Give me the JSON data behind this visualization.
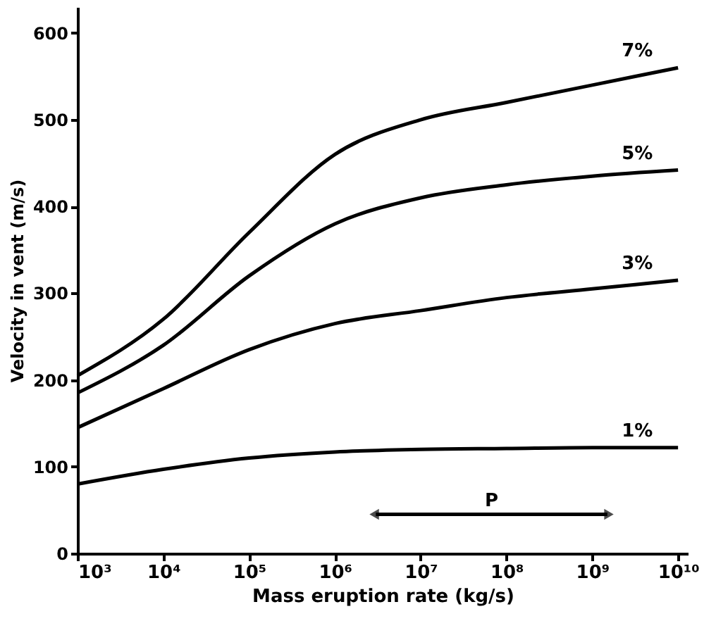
{
  "chart_data": {
    "type": "line",
    "xlabel": "Mass eruption rate  (kg/s)",
    "ylabel": "Velocity in vent (m/s)",
    "log": "x",
    "grid": false,
    "marker": "none",
    "line_style": "solid",
    "xlim": [
      1000,
      13000000000
    ],
    "ylim": [
      0,
      630
    ],
    "xticks": [
      {
        "value": 1000,
        "label": "10³"
      },
      {
        "value": 10000,
        "label": "10⁴"
      },
      {
        "value": 100000,
        "label": "10⁵"
      },
      {
        "value": 1000000,
        "label": "10⁶"
      },
      {
        "value": 10000000,
        "label": "10⁷"
      },
      {
        "value": 100000000,
        "label": "10⁸"
      },
      {
        "value": 1000000000,
        "label": "10⁹"
      },
      {
        "value": 10000000000,
        "label": "10¹⁰"
      }
    ],
    "yticks": [
      0,
      100,
      200,
      300,
      400,
      500,
      600
    ],
    "x": [
      1000,
      10000,
      100000,
      1000000,
      10000000,
      100000000,
      1000000000,
      10000000000
    ],
    "series": [
      {
        "name": "7%",
        "color": "#000000",
        "values": [
          205,
          270,
          370,
          460,
          500,
          520,
          540,
          560
        ]
      },
      {
        "name": "5%",
        "color": "#000000",
        "values": [
          185,
          240,
          320,
          380,
          410,
          425,
          435,
          442
        ]
      },
      {
        "name": "3%",
        "color": "#000000",
        "values": [
          145,
          190,
          235,
          265,
          280,
          295,
          305,
          315
        ]
      },
      {
        "name": "1%",
        "color": "#000000",
        "values": [
          80,
          97,
          110,
          117,
          120,
          121,
          122,
          122
        ]
      },
      {
        "name": "P",
        "type": "line",
        "color": "#000000",
        "marker": "triangle",
        "x": [
          3000000,
          1500000000
        ],
        "values": [
          45,
          45
        ]
      }
    ]
  }
}
